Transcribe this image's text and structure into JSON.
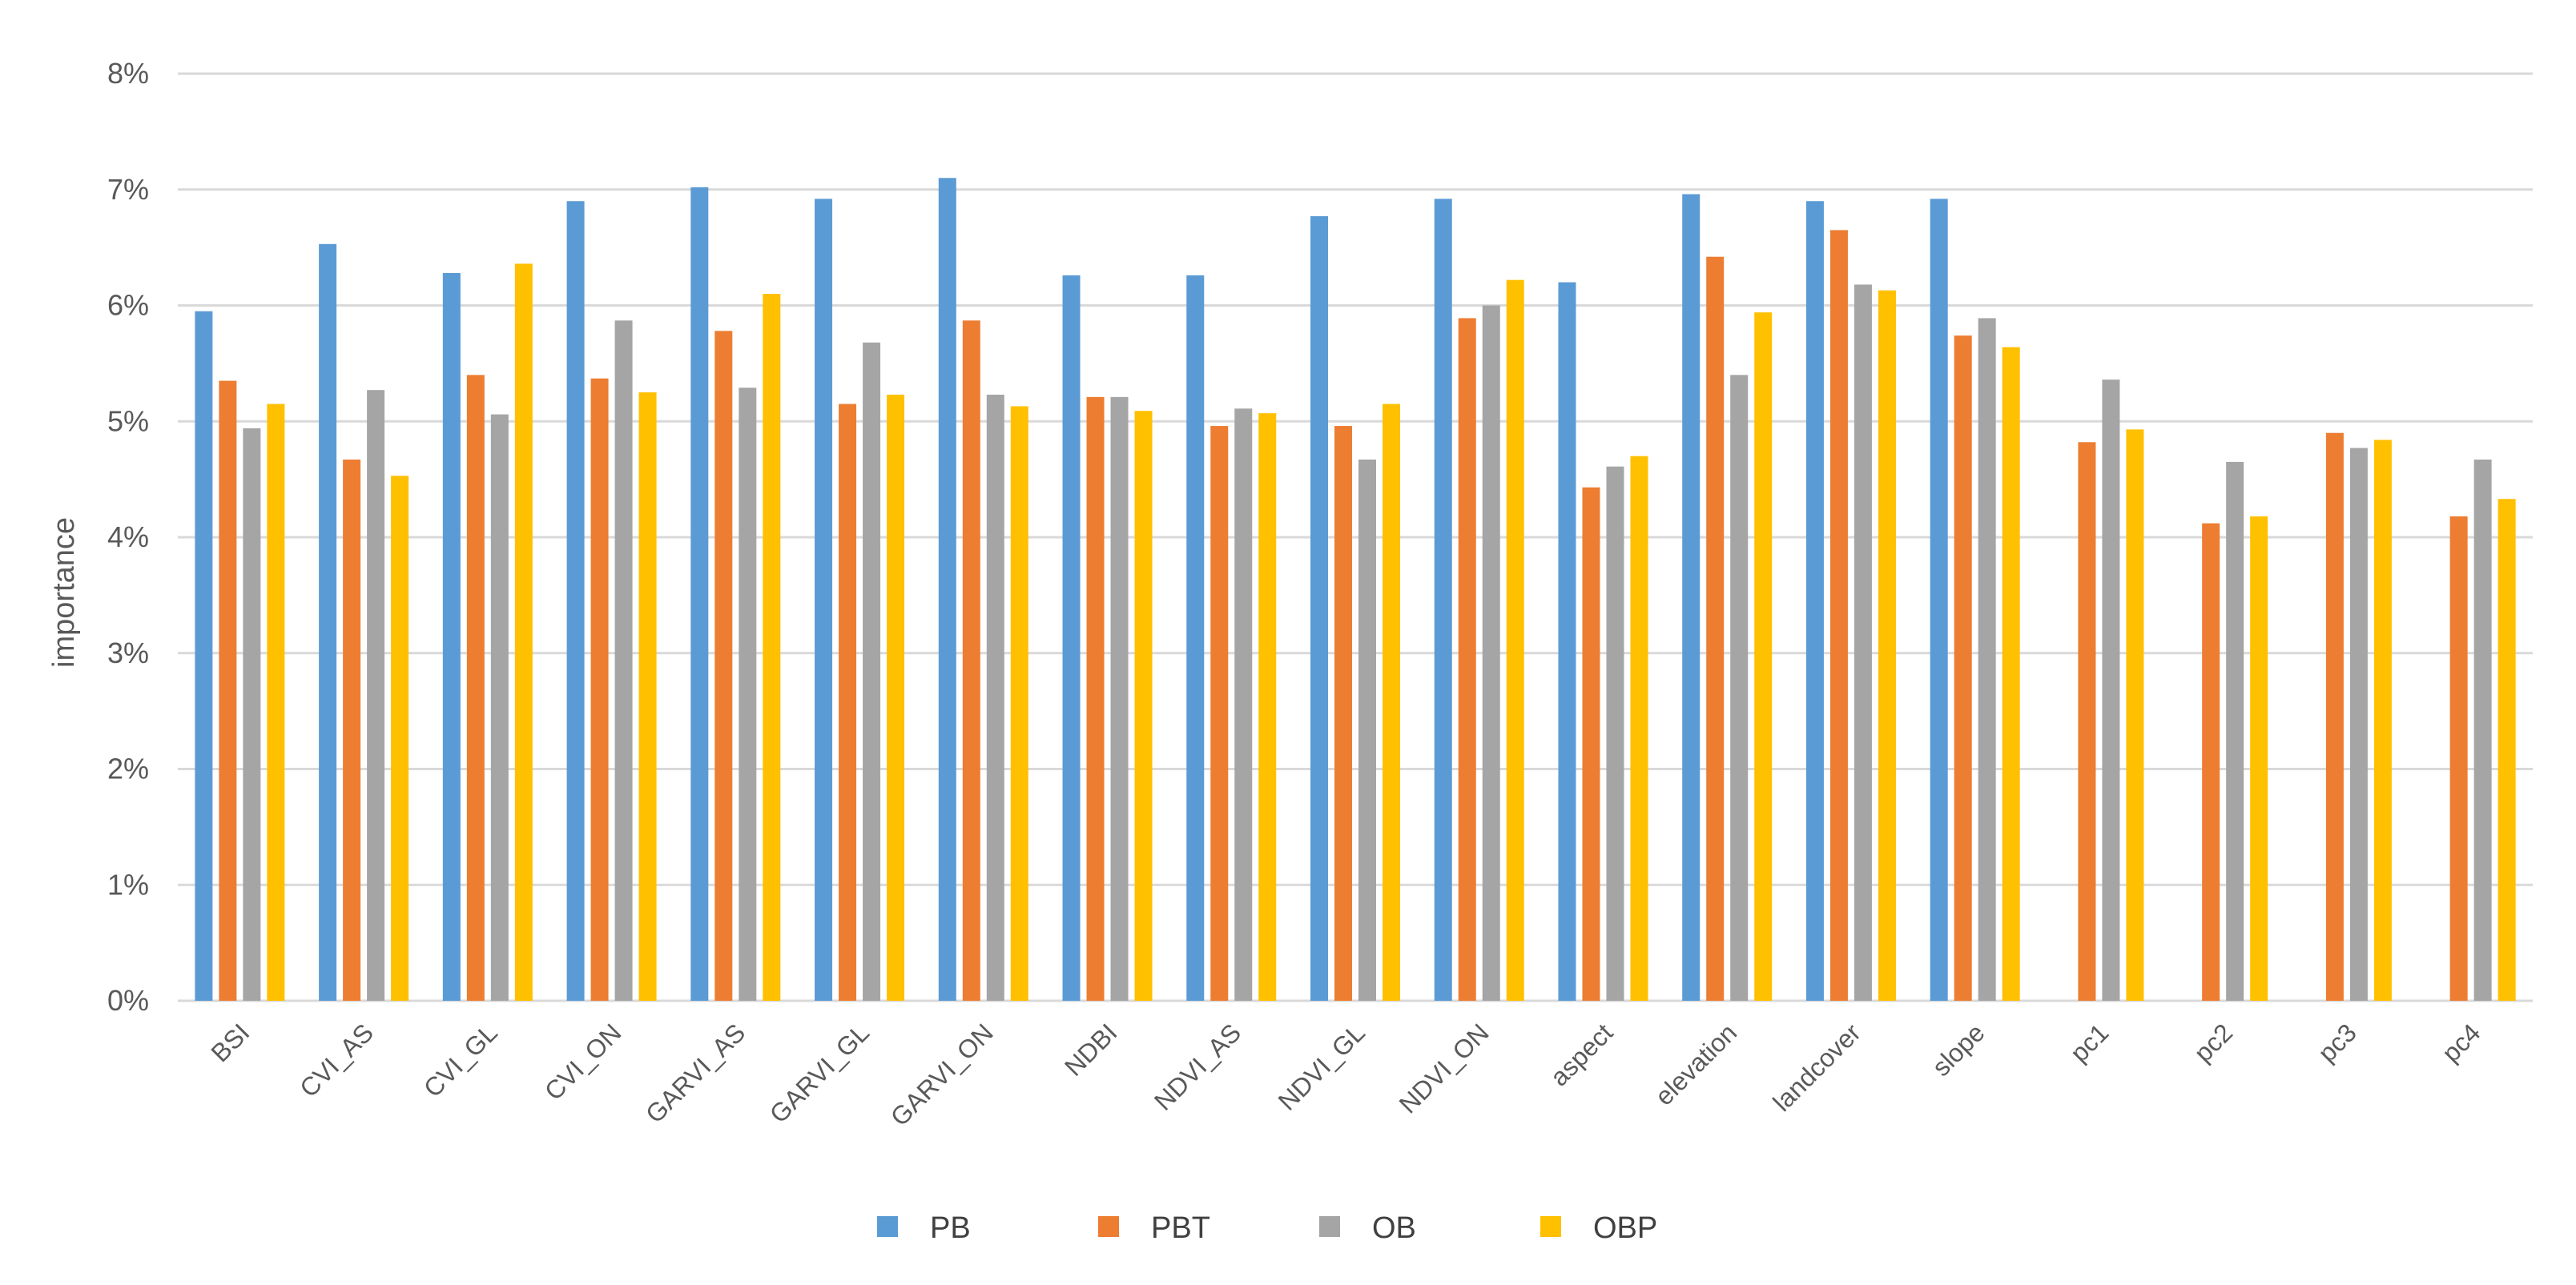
{
  "chart_data": {
    "type": "bar",
    "title": "",
    "xlabel": "",
    "ylabel": "importance",
    "ylim": [
      0,
      8
    ],
    "y_ticks": [
      0,
      1,
      2,
      3,
      4,
      5,
      6,
      7,
      8
    ],
    "y_tick_labels": [
      "0%",
      "1%",
      "2%",
      "3%",
      "4%",
      "5%",
      "6%",
      "7%",
      "8%"
    ],
    "grid": true,
    "legend_position": "bottom",
    "categories": [
      "BSI",
      "CVI_AS",
      "CVI_GL",
      "CVI_ON",
      "GARVI_AS",
      "GARVI_GL",
      "GARVI_ON",
      "NDBI",
      "NDVI_AS",
      "NDVI_GL",
      "NDVI_ON",
      "aspect",
      "elevation",
      "landcover",
      "slope",
      "pc1",
      "pc2",
      "pc3",
      "pc4"
    ],
    "series": [
      {
        "name": "PB",
        "color": "#5b9bd5",
        "values": [
          5.95,
          6.53,
          6.28,
          6.9,
          7.02,
          6.92,
          7.1,
          6.26,
          6.26,
          6.77,
          6.92,
          6.2,
          6.96,
          6.9,
          6.92,
          null,
          null,
          null,
          null
        ]
      },
      {
        "name": "PBT",
        "color": "#ed7d31",
        "values": [
          5.35,
          4.67,
          5.4,
          5.37,
          5.78,
          5.15,
          5.87,
          5.21,
          4.96,
          4.96,
          5.89,
          4.43,
          6.42,
          6.65,
          5.74,
          4.82,
          4.12,
          4.9,
          4.18
        ]
      },
      {
        "name": "OB",
        "color": "#a5a5a5",
        "values": [
          4.94,
          5.27,
          5.06,
          5.87,
          5.29,
          5.68,
          5.23,
          5.21,
          5.11,
          4.67,
          6.0,
          4.61,
          5.4,
          6.18,
          5.89,
          5.36,
          4.65,
          4.77,
          4.67
        ]
      },
      {
        "name": "OBP",
        "color": "#ffc000",
        "values": [
          5.15,
          4.53,
          6.36,
          5.25,
          6.1,
          5.23,
          5.13,
          5.09,
          5.07,
          5.15,
          6.22,
          4.7,
          5.94,
          6.13,
          5.64,
          4.93,
          4.18,
          4.84,
          4.33
        ]
      }
    ]
  }
}
